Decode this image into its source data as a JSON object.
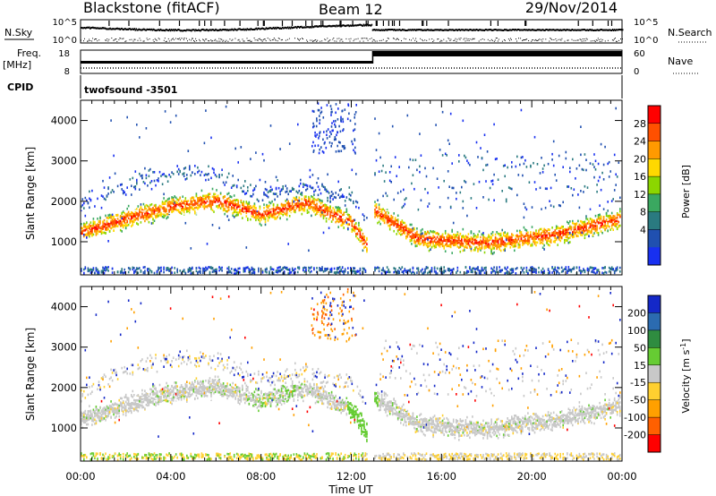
{
  "header": {
    "title_left": "Blackstone (fitACF)",
    "title_center": "Beam 12",
    "title_right": "29/Nov/2014"
  },
  "param_panels": {
    "nsky_label": "N.Sky",
    "nsky_ticks": [
      "10^5",
      "10^0"
    ],
    "nsearch_label": "N.Search",
    "nsearch_ticks": [
      "10^5",
      "10^0"
    ],
    "freq_label": "Freq.",
    "freq_unit": "[MHz]",
    "freq_ticks": [
      "18",
      "8"
    ],
    "nave_label": "Nave",
    "nave_ticks": [
      "60",
      "0"
    ],
    "cpid_label": "CPID",
    "cpid_value": "twofsound -3501"
  },
  "chart_data": [
    {
      "type": "heatmap",
      "name": "power",
      "ylabel": "Slant Range [km]",
      "yticks": [
        1000,
        2000,
        3000,
        4000
      ],
      "ylim": [
        180,
        4500
      ],
      "xlim_hours": [
        0,
        24
      ],
      "colorbar": {
        "label": "Power [dB]",
        "ticks": [
          "28",
          "24",
          "20",
          "16",
          "12",
          "8",
          "4"
        ],
        "colors": [
          "#ff0000",
          "#ff5000",
          "#ff9a00",
          "#ffd800",
          "#8cd600",
          "#3aa860",
          "#2a7a80",
          "#2050b0",
          "#1830f0"
        ]
      },
      "echo_band_center_km": [
        {
          "time": "00:00",
          "km": 1250
        },
        {
          "time": "02:00",
          "km": 1600
        },
        {
          "time": "04:00",
          "km": 1900
        },
        {
          "time": "06:00",
          "km": 2050
        },
        {
          "time": "08:00",
          "km": 1700
        },
        {
          "time": "10:00",
          "km": 2000
        },
        {
          "time": "12:00",
          "km": 1500
        },
        {
          "time": "12:45",
          "km": 850
        },
        {
          "time": "13:00",
          "km": 1800
        },
        {
          "time": "15:00",
          "km": 1100
        },
        {
          "time": "18:00",
          "km": 1000
        },
        {
          "time": "21:00",
          "km": 1200
        },
        {
          "time": "24:00",
          "km": 1600
        }
      ]
    },
    {
      "type": "heatmap",
      "name": "velocity",
      "ylabel": "Slant Range [km]",
      "yticks": [
        1000,
        2000,
        3000,
        4000
      ],
      "ylim": [
        180,
        4500
      ],
      "xlim_hours": [
        0,
        24
      ],
      "xlabel": "Time UT",
      "xticks": [
        "00:00",
        "04:00",
        "08:00",
        "12:00",
        "16:00",
        "20:00",
        "00:00"
      ],
      "colorbar": {
        "label": "Velocity [m s",
        "label_sup": "-1",
        "label_end": "]",
        "ticks": [
          "200",
          "100",
          "50",
          "15",
          "-15",
          "-50",
          "-100",
          "-200"
        ],
        "colors": [
          "#1428c8",
          "#2b6bb0",
          "#2f8c40",
          "#66cc33",
          "#c8c8c8",
          "#ffd030",
          "#ffa000",
          "#ff6000",
          "#ff0000"
        ]
      }
    }
  ]
}
